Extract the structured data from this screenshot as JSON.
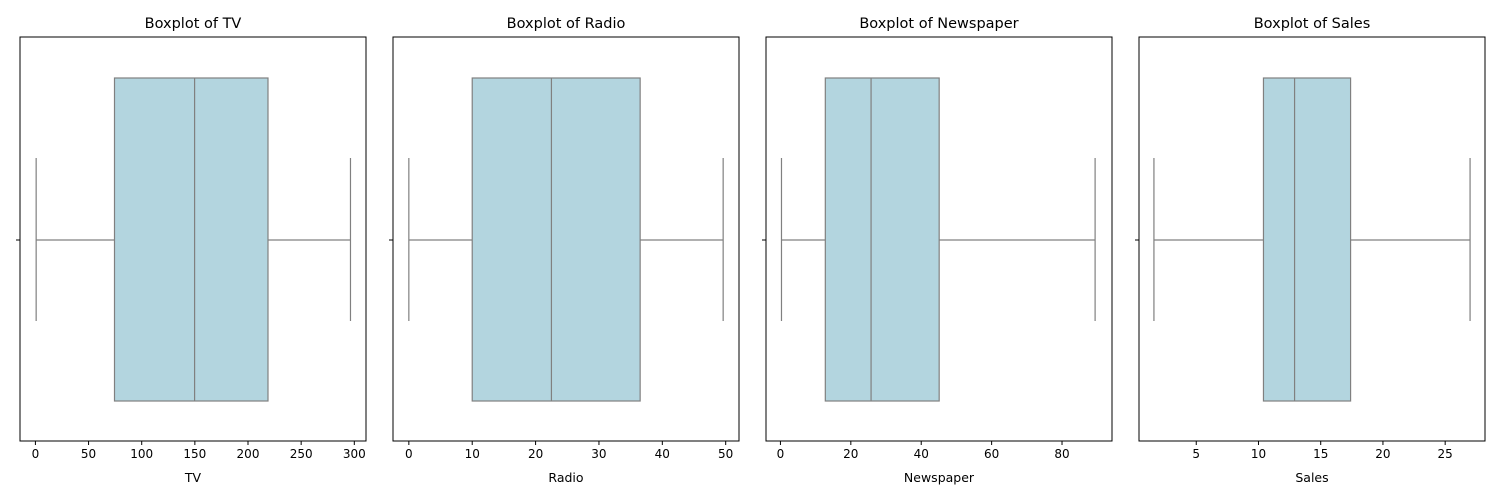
{
  "colors": {
    "box_fill": "#b3d5df",
    "line": "#808080",
    "axis": "#000000"
  },
  "chart_data": [
    {
      "type": "box",
      "title": "Boxplot of TV",
      "xlabel": "TV",
      "xlim": [
        -14.5,
        311
      ],
      "ticks": [
        0,
        50,
        100,
        150,
        200,
        250,
        300
      ],
      "stats": {
        "min": 0.7,
        "q1": 74.4,
        "median": 149.75,
        "q3": 218.8,
        "max": 296.4
      }
    },
    {
      "type": "box",
      "title": "Boxplot of Radio",
      "xlabel": "Radio",
      "xlim": [
        -2.5,
        52.1
      ],
      "ticks": [
        0,
        10,
        20,
        30,
        40,
        50
      ],
      "stats": {
        "min": 0.0,
        "q1": 10.0,
        "median": 22.5,
        "q3": 36.5,
        "max": 49.6
      }
    },
    {
      "type": "box",
      "title": "Boxplot of Newspaper",
      "xlabel": "Newspaper",
      "xlim": [
        -4.1,
        94.2
      ],
      "ticks": [
        0,
        20,
        40,
        60,
        80
      ],
      "stats": {
        "min": 0.3,
        "q1": 12.75,
        "median": 25.75,
        "q3": 45.1,
        "max": 89.4
      }
    },
    {
      "type": "box",
      "title": "Boxplot of Sales",
      "xlabel": "Sales",
      "xlim": [
        0.4,
        28.2
      ],
      "ticks": [
        5,
        10,
        15,
        20,
        25
      ],
      "stats": {
        "min": 1.6,
        "q1": 10.4,
        "median": 12.9,
        "q3": 17.4,
        "max": 27.0
      }
    }
  ]
}
